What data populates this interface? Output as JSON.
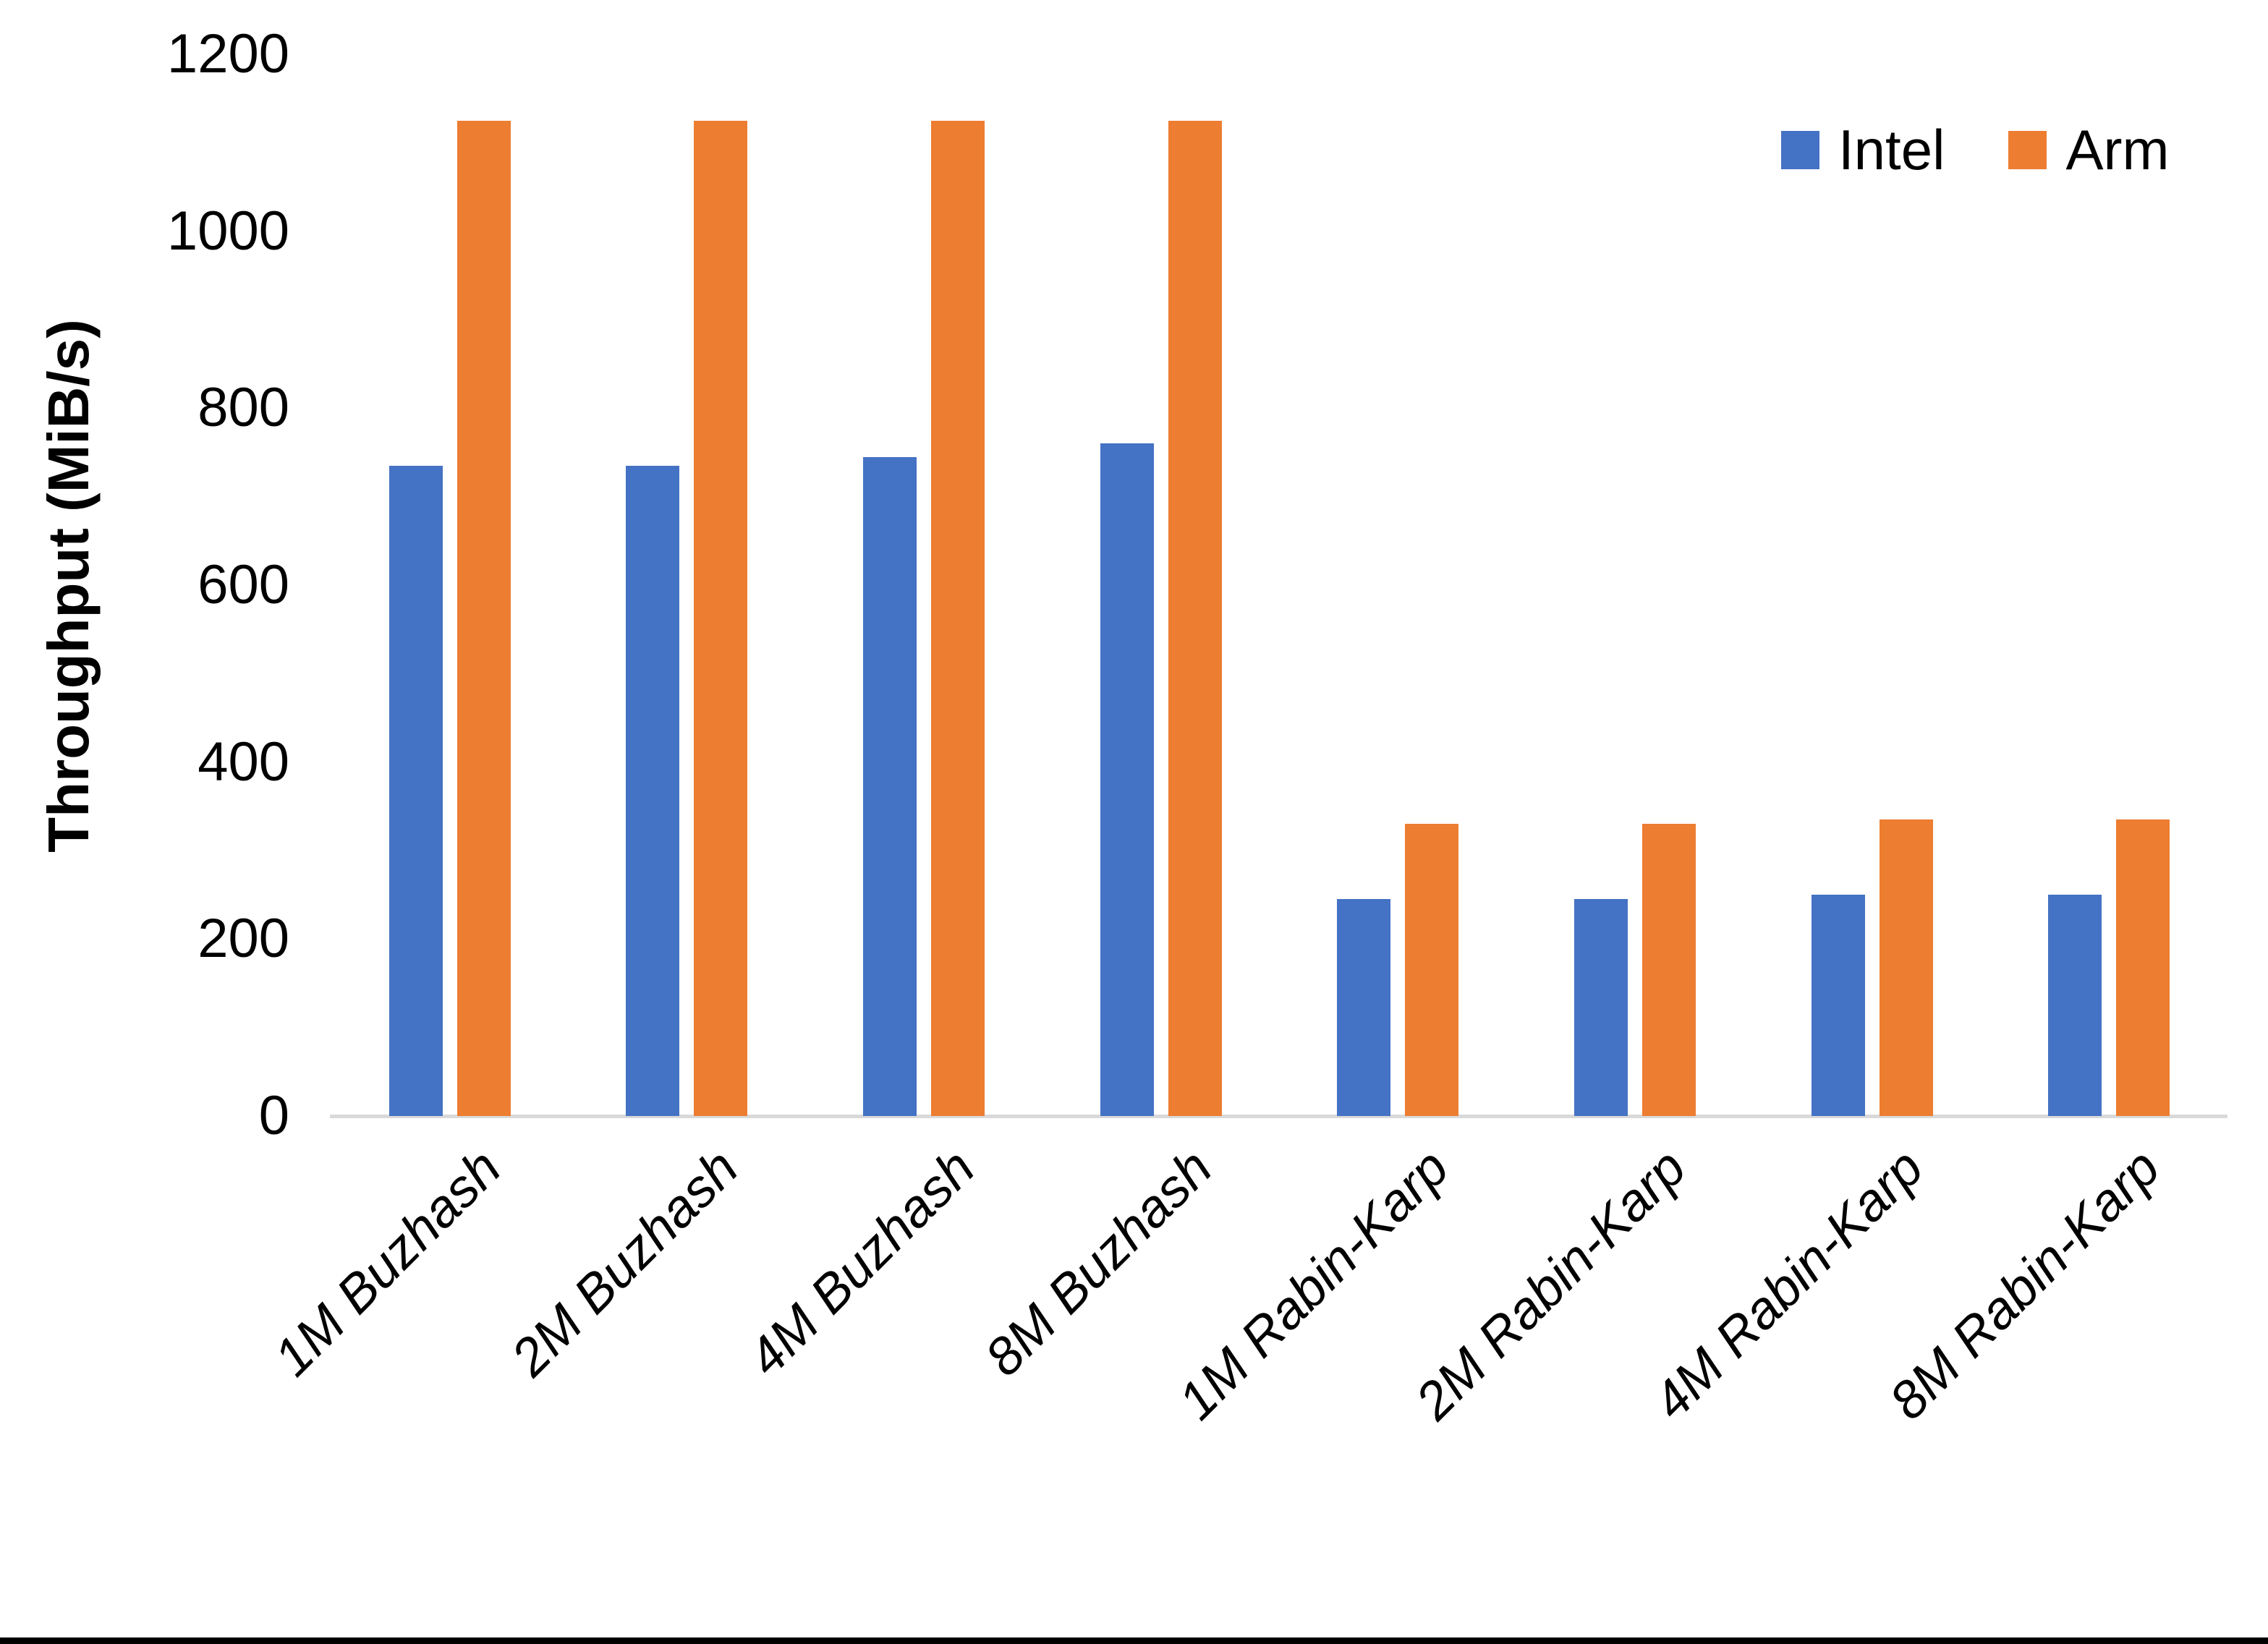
{
  "chart_data": {
    "type": "bar",
    "title": "",
    "xlabel": "",
    "ylabel": "Throughput (MiB/s)",
    "categories": [
      "1M Buzhash",
      "2M Buzhash",
      "4M Buzhash",
      "8M Buzhash",
      "1M Rabin-Karp",
      "2M Rabin-Karp",
      "4M Rabin-Karp",
      "8M Rabin-Karp"
    ],
    "series": [
      {
        "name": "Intel",
        "color": "#4472C4",
        "values": [
          735,
          735,
          745,
          760,
          245,
          245,
          250,
          250
        ]
      },
      {
        "name": "Arm",
        "color": "#ED7D31",
        "values": [
          1125,
          1125,
          1125,
          1125,
          330,
          330,
          335,
          335
        ]
      }
    ],
    "ylim": [
      0,
      1200
    ],
    "yticks": [
      0,
      200,
      400,
      600,
      800,
      1000,
      1200
    ],
    "grid": false,
    "legend_position": "top-right",
    "axis_line_color": "#D9D9D9",
    "page_border_color": "#000000"
  }
}
